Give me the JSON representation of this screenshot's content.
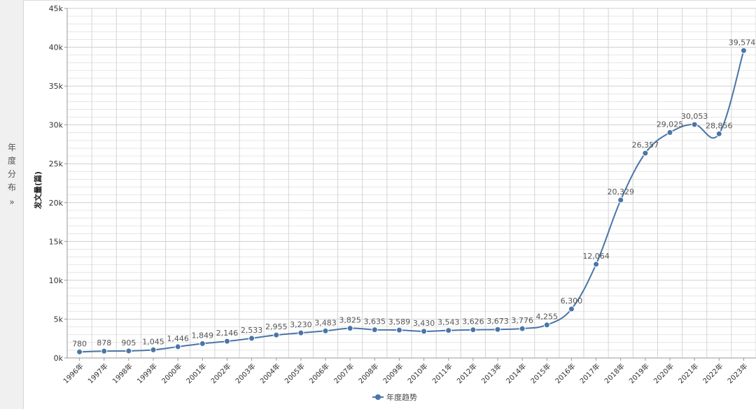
{
  "sidebar": {
    "chars": [
      "年",
      "度",
      "分",
      "布"
    ],
    "expand_icon": "double-chevron-right-icon",
    "expand_glyph": "»"
  },
  "chart_data": {
    "type": "line",
    "x": [
      "1996年",
      "1997年",
      "1998年",
      "1999年",
      "2000年",
      "2001年",
      "2002年",
      "2003年",
      "2004年",
      "2005年",
      "2006年",
      "2007年",
      "2008年",
      "2009年",
      "2010年",
      "2011年",
      "2012年",
      "2013年",
      "2014年",
      "2015年",
      "2016年",
      "2017年",
      "2018年",
      "2019年",
      "2020年",
      "2021年",
      "2022年",
      "2023年"
    ],
    "series": [
      {
        "name": "年度趋势",
        "color": "#4a75a8",
        "values": [
          780,
          878,
          905,
          1045,
          1446,
          1849,
          2146,
          2533,
          2955,
          3230,
          3483,
          3825,
          3635,
          3589,
          3430,
          3543,
          3626,
          3673,
          3776,
          4255,
          6300,
          12064,
          20329,
          26357,
          29025,
          30053,
          28856,
          39574
        ],
        "labels": [
          "780",
          "878",
          "905",
          "1,045",
          "1,446",
          "1,849",
          "2,146",
          "2,533",
          "2,955",
          "3,230",
          "3,483",
          "3,825",
          "3,635",
          "3,589",
          "3,430",
          "3,543",
          "3,626",
          "3,673",
          "3,776",
          "4,255",
          "6,300",
          "12,064",
          "20,329",
          "26,357",
          "29,025",
          "30,053",
          "28,856",
          "39,574"
        ]
      }
    ],
    "ylabel": "发文量(篇)",
    "ylim": [
      0,
      45000
    ],
    "yticks": [
      0,
      5000,
      10000,
      15000,
      20000,
      25000,
      30000,
      35000,
      40000,
      45000
    ],
    "ytick_labels": [
      "0k",
      "5k",
      "10k",
      "15k",
      "20k",
      "25k",
      "30k",
      "35k",
      "40k",
      "45k"
    ],
    "grid": true,
    "legend_position": "bottom-center"
  }
}
